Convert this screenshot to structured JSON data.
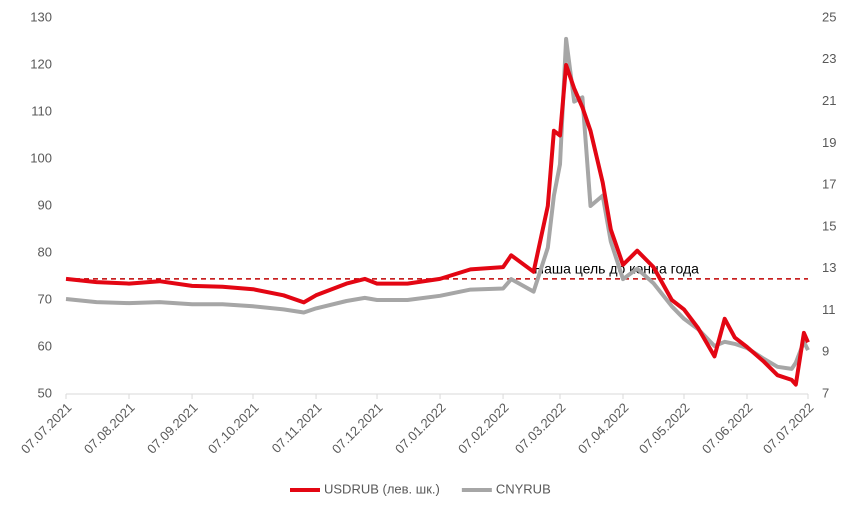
{
  "chart_data": {
    "type": "line",
    "x": [
      "07.07.2021",
      "22.07.2021",
      "07.08.2021",
      "22.08.2021",
      "07.09.2021",
      "22.09.2021",
      "07.10.2021",
      "22.10.2021",
      "01.11.2021",
      "07.11.2021",
      "22.11.2021",
      "01.12.2021",
      "07.12.2021",
      "22.12.2021",
      "07.01.2022",
      "22.01.2022",
      "07.02.2022",
      "11.02.2022",
      "22.02.2022",
      "01.03.2022",
      "04.03.2022",
      "07.03.2022",
      "10.03.2022",
      "14.03.2022",
      "18.03.2022",
      "22.03.2022",
      "28.03.2022",
      "01.04.2022",
      "07.04.2022",
      "14.04.2022",
      "22.04.2022",
      "01.05.2022",
      "07.05.2022",
      "14.05.2022",
      "22.05.2022",
      "27.05.2022",
      "01.06.2022",
      "07.06.2022",
      "15.06.2022",
      "22.06.2022",
      "29.06.2022",
      "01.07.2022",
      "05.07.2022",
      "07.07.2022"
    ],
    "series": [
      {
        "name": "USDRUB (лев. шк.)",
        "color": "#e30613",
        "values": [
          74.5,
          73.8,
          73.5,
          74,
          73,
          72.8,
          72.3,
          71,
          69.5,
          71,
          73.5,
          74.5,
          73.5,
          73.5,
          74.5,
          76.5,
          77,
          79.5,
          76,
          90,
          106,
          105,
          120,
          115,
          111,
          106,
          95,
          85,
          77.5,
          80.5,
          77,
          70,
          68,
          64,
          58,
          66,
          62,
          60,
          57,
          54,
          53,
          52,
          63,
          61
        ]
      },
      {
        "name": "CNYRUB",
        "color": "#a6a6a6",
        "axis": "y2",
        "values": [
          11.55,
          11.4,
          11.35,
          11.4,
          11.3,
          11.3,
          11.2,
          11.05,
          10.9,
          11.1,
          11.45,
          11.6,
          11.5,
          11.5,
          11.7,
          12.0,
          12.05,
          12.5,
          11.9,
          14,
          16.5,
          18,
          24.0,
          21,
          21.2,
          16,
          16.5,
          14.3,
          12.5,
          13,
          12.3,
          11.2,
          10.6,
          10.1,
          9.3,
          9.5,
          9.4,
          9.2,
          8.7,
          8.3,
          8.2,
          8.5,
          9.5,
          9.1
        ]
      }
    ],
    "xlim": [
      "07.07.2021",
      "07.07.2022"
    ],
    "xticks": [
      "07.07.2021",
      "07.08.2021",
      "07.09.2021",
      "07.10.2021",
      "07.11.2021",
      "07.12.2021",
      "07.01.2022",
      "07.02.2022",
      "07.03.2022",
      "07.04.2022",
      "07.05.2022",
      "07.06.2022",
      "07.07.2022"
    ],
    "ylim": [
      50,
      130
    ],
    "yticks": [
      50,
      60,
      70,
      80,
      90,
      100,
      110,
      120,
      130
    ],
    "y2lim": [
      7,
      25
    ],
    "y2ticks": [
      7,
      9,
      11,
      13,
      15,
      17,
      19,
      21,
      23,
      25
    ],
    "target": {
      "value": 74.5,
      "label": "Наша цель до конца года",
      "color": "#c00000"
    },
    "legend": "bottom"
  }
}
